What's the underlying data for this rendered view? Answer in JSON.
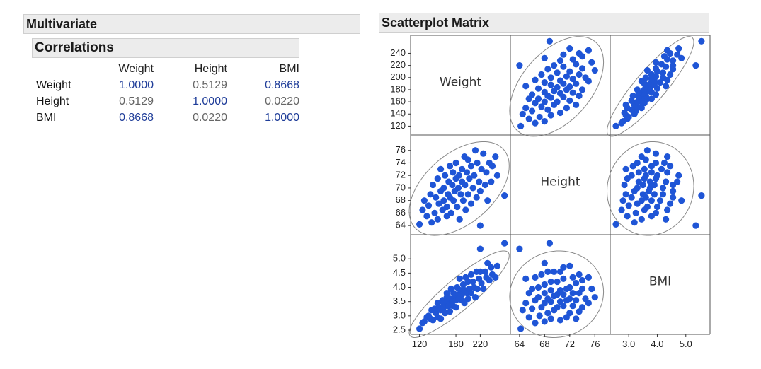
{
  "multivariate": {
    "title": "Multivariate",
    "correlations_title": "Correlations",
    "columns": [
      "Weight",
      "Height",
      "BMI"
    ],
    "rows": [
      {
        "label": "Weight",
        "values": [
          "1.0000",
          "0.5129",
          "0.8668"
        ]
      },
      {
        "label": "Height",
        "values": [
          "0.5129",
          "1.0000",
          "0.0220"
        ]
      },
      {
        "label": "BMI",
        "values": [
          "0.8668",
          "0.0220",
          "1.0000"
        ]
      }
    ]
  },
  "scatterplot": {
    "title": "Scatterplot Matrix"
  },
  "chart_data": {
    "type": "scatter",
    "title": "Scatterplot Matrix",
    "variables": [
      "Weight",
      "Height",
      "BMI"
    ],
    "ranges": {
      "Weight": [
        110,
        265
      ],
      "Height": [
        63,
        78
      ],
      "BMI": [
        2.45,
        5.75
      ]
    },
    "y_ticks": {
      "Weight": [
        120,
        140,
        160,
        180,
        200,
        220,
        240
      ],
      "Height": [
        64,
        66,
        68,
        70,
        72,
        74,
        76
      ],
      "BMI": [
        "2.5",
        "3.0",
        "3.5",
        "4.0",
        "4.5",
        "5.0"
      ]
    },
    "x_ticks": {
      "Weight": [
        120,
        180,
        220
      ],
      "Height": [
        64,
        68,
        72,
        76
      ],
      "BMI": [
        "3.0",
        "4.0",
        "5.0"
      ]
    },
    "density_ellipse": true,
    "marker_color": "#1f55d6",
    "ellipse_color": "#888888",
    "points": [
      {
        "Weight": 120,
        "Height": 64.2,
        "BMI": 2.55
      },
      {
        "Weight": 125,
        "Height": 66.5,
        "BMI": 2.75
      },
      {
        "Weight": 128,
        "Height": 68.0,
        "BMI": 2.8
      },
      {
        "Weight": 132,
        "Height": 65.5,
        "BMI": 2.95
      },
      {
        "Weight": 135,
        "Height": 67.2,
        "BMI": 3.0
      },
      {
        "Weight": 138,
        "Height": 69.0,
        "BMI": 2.9
      },
      {
        "Weight": 140,
        "Height": 64.5,
        "BMI": 3.2
      },
      {
        "Weight": 142,
        "Height": 70.5,
        "BMI": 2.85
      },
      {
        "Weight": 145,
        "Height": 66.0,
        "BMI": 3.25
      },
      {
        "Weight": 147,
        "Height": 68.5,
        "BMI": 3.1
      },
      {
        "Weight": 150,
        "Height": 71.5,
        "BMI": 2.95
      },
      {
        "Weight": 150,
        "Height": 65.0,
        "BMI": 3.45
      },
      {
        "Weight": 152,
        "Height": 67.5,
        "BMI": 3.3
      },
      {
        "Weight": 155,
        "Height": 69.5,
        "BMI": 3.2
      },
      {
        "Weight": 155,
        "Height": 73.0,
        "BMI": 2.9
      },
      {
        "Weight": 158,
        "Height": 66.5,
        "BMI": 3.55
      },
      {
        "Weight": 160,
        "Height": 68.0,
        "BMI": 3.45
      },
      {
        "Weight": 160,
        "Height": 70.0,
        "BMI": 3.3
      },
      {
        "Weight": 162,
        "Height": 72.0,
        "BMI": 3.1
      },
      {
        "Weight": 165,
        "Height": 65.5,
        "BMI": 3.8
      },
      {
        "Weight": 165,
        "Height": 67.0,
        "BMI": 3.65
      },
      {
        "Weight": 167,
        "Height": 69.0,
        "BMI": 3.5
      },
      {
        "Weight": 168,
        "Height": 71.0,
        "BMI": 3.35
      },
      {
        "Weight": 170,
        "Height": 73.5,
        "BMI": 3.15
      },
      {
        "Weight": 170,
        "Height": 68.5,
        "BMI": 3.6
      },
      {
        "Weight": 172,
        "Height": 66.0,
        "BMI": 3.95
      },
      {
        "Weight": 174,
        "Height": 70.5,
        "BMI": 3.5
      },
      {
        "Weight": 175,
        "Height": 72.5,
        "BMI": 3.35
      },
      {
        "Weight": 176,
        "Height": 68.0,
        "BMI": 3.8
      },
      {
        "Weight": 178,
        "Height": 69.5,
        "BMI": 3.7
      },
      {
        "Weight": 180,
        "Height": 71.5,
        "BMI": 3.55
      },
      {
        "Weight": 180,
        "Height": 74.0,
        "BMI": 3.3
      },
      {
        "Weight": 182,
        "Height": 67.0,
        "BMI": 4.0
      },
      {
        "Weight": 184,
        "Height": 70.0,
        "BMI": 3.75
      },
      {
        "Weight": 185,
        "Height": 72.0,
        "BMI": 3.6
      },
      {
        "Weight": 186,
        "Height": 65.0,
        "BMI": 4.3
      },
      {
        "Weight": 188,
        "Height": 69.0,
        "BMI": 3.9
      },
      {
        "Weight": 190,
        "Height": 71.0,
        "BMI": 3.75
      },
      {
        "Weight": 190,
        "Height": 73.0,
        "BMI": 3.55
      },
      {
        "Weight": 192,
        "Height": 68.0,
        "BMI": 4.1
      },
      {
        "Weight": 194,
        "Height": 75.0,
        "BMI": 3.45
      },
      {
        "Weight": 195,
        "Height": 70.5,
        "BMI": 3.9
      },
      {
        "Weight": 196,
        "Height": 66.5,
        "BMI": 4.35
      },
      {
        "Weight": 198,
        "Height": 72.5,
        "BMI": 3.8
      },
      {
        "Weight": 200,
        "Height": 69.0,
        "BMI": 4.2
      },
      {
        "Weight": 200,
        "Height": 74.5,
        "BMI": 3.6
      },
      {
        "Weight": 202,
        "Height": 71.5,
        "BMI": 3.95
      },
      {
        "Weight": 205,
        "Height": 67.5,
        "BMI": 4.45
      },
      {
        "Weight": 205,
        "Height": 73.5,
        "BMI": 3.8
      },
      {
        "Weight": 208,
        "Height": 70.0,
        "BMI": 4.2
      },
      {
        "Weight": 210,
        "Height": 72.0,
        "BMI": 4.0
      },
      {
        "Weight": 212,
        "Height": 76.0,
        "BMI": 3.65
      },
      {
        "Weight": 214,
        "Height": 68.5,
        "BMI": 4.55
      },
      {
        "Weight": 215,
        "Height": 74.0,
        "BMI": 3.95
      },
      {
        "Weight": 218,
        "Height": 71.0,
        "BMI": 4.3
      },
      {
        "Weight": 220,
        "Height": 69.5,
        "BMI": 4.55
      },
      {
        "Weight": 220,
        "Height": 64.0,
        "BMI": 5.35
      },
      {
        "Weight": 222,
        "Height": 73.0,
        "BMI": 4.15
      },
      {
        "Weight": 225,
        "Height": 75.5,
        "BMI": 3.95
      },
      {
        "Weight": 228,
        "Height": 70.5,
        "BMI": 4.55
      },
      {
        "Weight": 230,
        "Height": 72.5,
        "BMI": 4.35
      },
      {
        "Weight": 232,
        "Height": 68.0,
        "BMI": 4.85
      },
      {
        "Weight": 235,
        "Height": 74.0,
        "BMI": 4.25
      },
      {
        "Weight": 238,
        "Height": 71.0,
        "BMI": 4.7
      },
      {
        "Weight": 240,
        "Height": 73.5,
        "BMI": 4.45
      },
      {
        "Weight": 245,
        "Height": 75.0,
        "BMI": 4.35
      },
      {
        "Weight": 248,
        "Height": 72.0,
        "BMI": 4.75
      },
      {
        "Weight": 260,
        "Height": 68.8,
        "BMI": 5.55
      }
    ]
  }
}
